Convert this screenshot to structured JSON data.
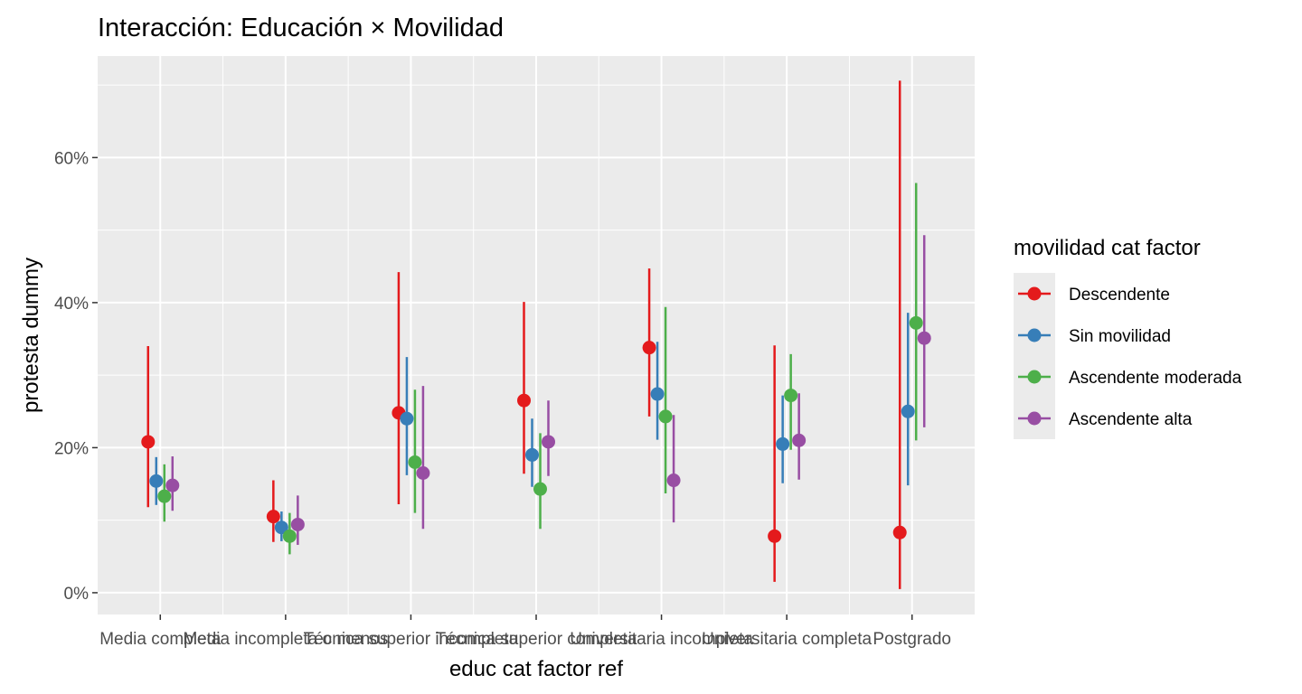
{
  "chart_data": {
    "type": "scatter",
    "title": "Interacción: Educación × Movilidad",
    "xlabel": "educ cat factor ref",
    "ylabel": "protesta dummy",
    "ylim": [
      -0.03,
      0.74
    ],
    "y_ticks": [
      0,
      0.2,
      0.4,
      0.6
    ],
    "y_tick_labels": [
      "0%",
      "20%",
      "40%",
      "60%"
    ],
    "grid": true,
    "legend_title": "movilidad cat factor",
    "legend_position": "right",
    "categories": [
      "Media completa",
      "Media incompleta o menos",
      "Técnica superior incompleta",
      "Técnica superior completa",
      "Universitaria incompleta",
      "Universitaria completa",
      "Postgrado"
    ],
    "series": [
      {
        "name": "Descendente",
        "color": "#e41a1c",
        "estimate": [
          0.208,
          0.105,
          0.248,
          0.265,
          0.338,
          0.078,
          0.083
        ],
        "lower": [
          0.118,
          0.07,
          0.122,
          0.164,
          0.243,
          0.015,
          0.005
        ],
        "upper": [
          0.34,
          0.155,
          0.442,
          0.401,
          0.447,
          0.341,
          0.706
        ]
      },
      {
        "name": "Sin movilidad",
        "color": "#377eb8",
        "estimate": [
          0.154,
          0.09,
          0.24,
          0.19,
          0.274,
          0.205,
          0.25
        ],
        "lower": [
          0.121,
          0.071,
          0.162,
          0.146,
          0.211,
          0.151,
          0.148
        ],
        "upper": [
          0.187,
          0.112,
          0.325,
          0.24,
          0.346,
          0.272,
          0.386
        ]
      },
      {
        "name": "Ascendente moderada",
        "color": "#4daf4a",
        "estimate": [
          0.133,
          0.078,
          0.18,
          0.143,
          0.243,
          0.272,
          0.372
        ],
        "lower": [
          0.098,
          0.053,
          0.11,
          0.088,
          0.137,
          0.197,
          0.21
        ],
        "upper": [
          0.177,
          0.11,
          0.28,
          0.22,
          0.394,
          0.329,
          0.565
        ]
      },
      {
        "name": "Ascendente alta",
        "color": "#984ea3",
        "estimate": [
          0.148,
          0.094,
          0.165,
          0.208,
          0.155,
          0.21,
          0.351
        ],
        "lower": [
          0.113,
          0.066,
          0.088,
          0.161,
          0.097,
          0.156,
          0.228
        ],
        "upper": [
          0.188,
          0.134,
          0.285,
          0.265,
          0.245,
          0.275,
          0.493
        ]
      }
    ]
  }
}
